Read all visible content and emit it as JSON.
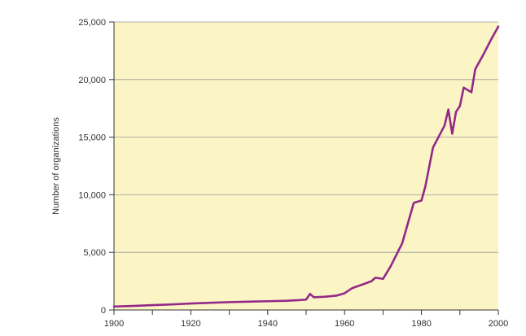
{
  "chart_data": {
    "type": "line",
    "title": "",
    "xlabel": "",
    "ylabel": "Number of organizations",
    "xlim": [
      1900,
      2000
    ],
    "ylim": [
      0,
      25000
    ],
    "grid": "horizontal",
    "x_ticks": [
      1900,
      1920,
      1940,
      1960,
      1980,
      2000
    ],
    "y_ticks": [
      0,
      5000,
      10000,
      15000,
      20000,
      25000
    ],
    "x_tick_labels": [
      "1900",
      "1920",
      "1940",
      "1960",
      "1980",
      "2000"
    ],
    "y_tick_labels": [
      "0",
      "5,000",
      "10,000",
      "15,000",
      "20,000",
      "25,000"
    ],
    "colors": {
      "plot_background": "#FBF5C6",
      "line": "#942887",
      "gridline": "#9a9a9a",
      "axis": "#333333"
    },
    "series": [
      {
        "x": [
          1900,
          1905,
          1910,
          1915,
          1920,
          1925,
          1930,
          1935,
          1940,
          1945,
          1948,
          1950,
          1951,
          1952,
          1955,
          1958,
          1960,
          1962,
          1965,
          1967,
          1968,
          1970,
          1972,
          1975,
          1978,
          1980,
          1981,
          1983,
          1986,
          1987,
          1988,
          1989,
          1990,
          1991,
          1993,
          1994,
          1996,
          1998,
          2000
        ],
        "y": [
          300,
          350,
          420,
          480,
          560,
          620,
          680,
          720,
          760,
          800,
          850,
          900,
          1400,
          1100,
          1150,
          1250,
          1450,
          1900,
          2250,
          2500,
          2800,
          2700,
          3800,
          5800,
          9300,
          9500,
          10700,
          14100,
          16000,
          17400,
          15300,
          17200,
          17700,
          19300,
          18900,
          20900,
          22100,
          23400,
          24600
        ]
      }
    ]
  }
}
